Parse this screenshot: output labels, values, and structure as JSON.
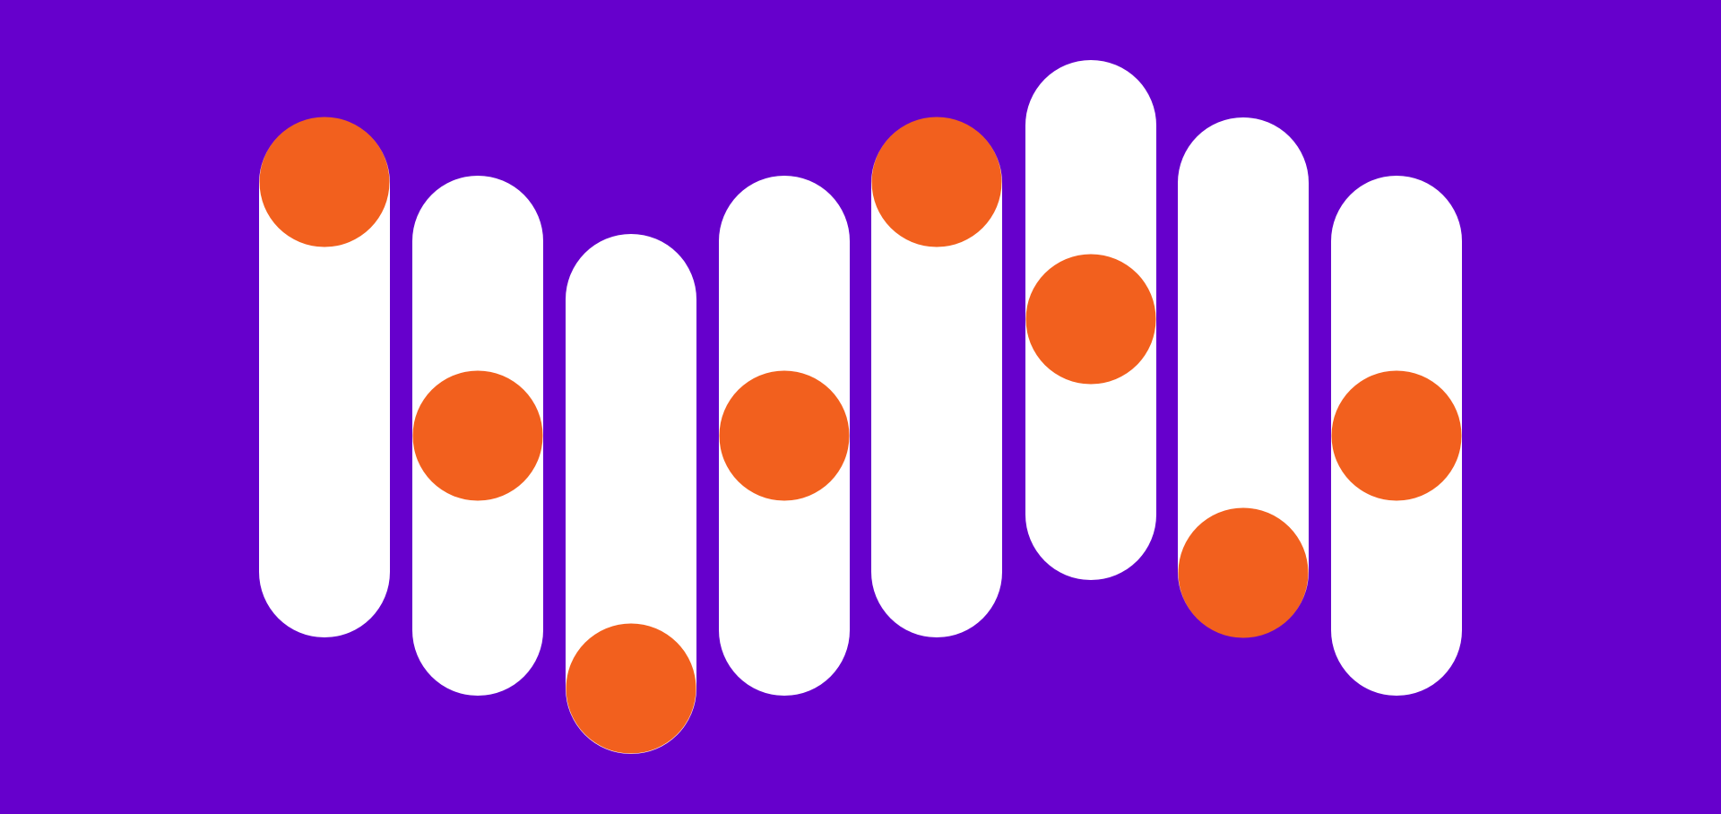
{
  "colors": {
    "background": "#6600CC",
    "pill": "#FFFFFF",
    "dot": "#F2601E"
  },
  "pill_count": 8
}
